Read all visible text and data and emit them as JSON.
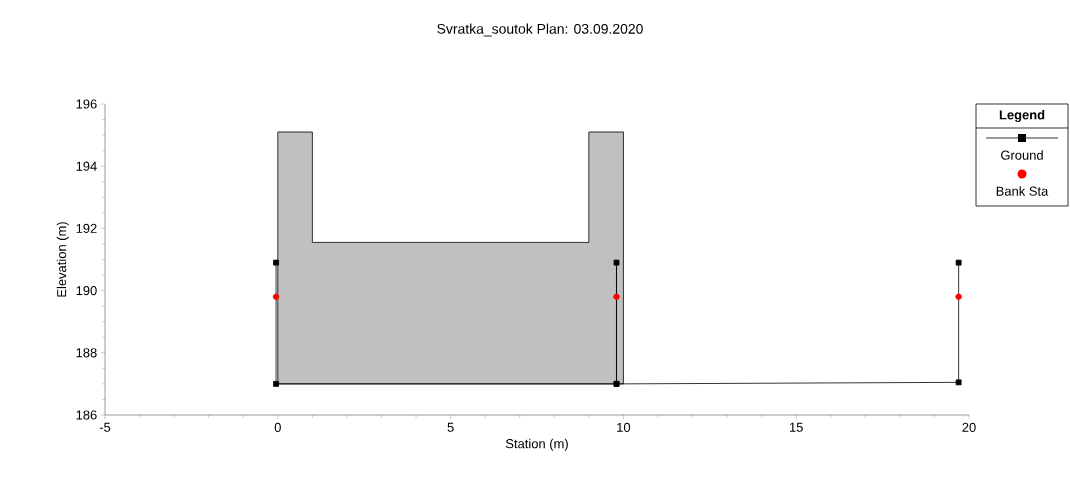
{
  "chart_data": {
    "type": "line",
    "title": "Svratka_soutok Plan: 03.09.2020",
    "xlabel": "Station (m)",
    "ylabel": "Elevation (m)",
    "legend_title": "Legend",
    "xlim": [
      -5,
      20
    ],
    "xticks": [
      -5,
      0,
      5,
      10,
      15,
      20
    ],
    "ylim": [
      186,
      196
    ],
    "yticks": [
      186,
      188,
      190,
      192,
      194,
      196
    ],
    "grid": false,
    "legend": "right",
    "series": [
      {
        "type": "area",
        "color": "#c0c0c0",
        "x": [
          0,
          0,
          1,
          1,
          9,
          9,
          10,
          10
        ],
        "values": [
          187,
          195.1,
          195.1,
          191.55,
          191.55,
          195.1,
          195.1,
          187
        ]
      },
      {
        "name": "Ground",
        "color": "#000000",
        "marker": "square",
        "line_style": "solid",
        "x": [
          -0.05,
          -0.05,
          9.8,
          9.8,
          9.8,
          19.7,
          19.7
        ],
        "values": [
          190.9,
          187,
          187,
          190.9,
          187,
          187.05,
          190.9
        ]
      },
      {
        "type": "scatter",
        "name": "Bank Sta",
        "color": "#ff0000",
        "marker": "circle",
        "x": [
          -0.05,
          9.8,
          19.7
        ],
        "values": [
          189.8,
          189.8,
          189.8
        ]
      }
    ]
  }
}
